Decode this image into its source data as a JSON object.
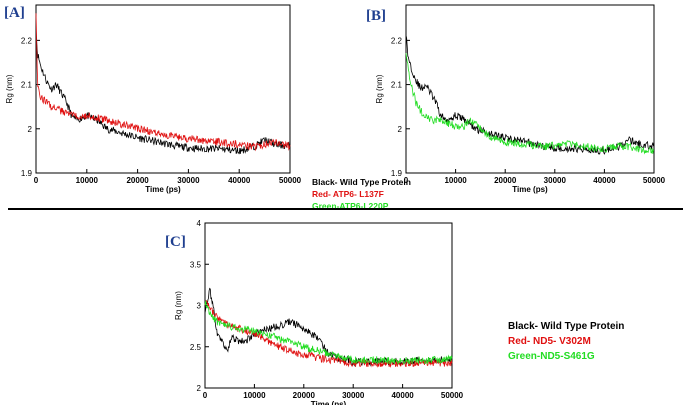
{
  "panels": [
    {
      "label": "[A]"
    },
    {
      "label": "[B]"
    },
    {
      "label": "[C]"
    }
  ],
  "legend_top": {
    "items": [
      {
        "text": "Black- Wild Type Protein",
        "color": "#000000"
      },
      {
        "text": "Red- ATP6- L137F",
        "color": "#e01010"
      },
      {
        "text": "Green-ATP6-L220P",
        "color": "#22dd22"
      }
    ]
  },
  "legend_bottom": {
    "items": [
      {
        "text": "Black- Wild Type Protein",
        "color": "#000000"
      },
      {
        "text": "Red- ND5- V302M",
        "color": "#e01010"
      },
      {
        "text": "Green-ND5-S461G",
        "color": "#22dd22"
      }
    ]
  },
  "chart_data": [
    {
      "type": "line",
      "panel": "[A]",
      "xlabel": "Time (ps)",
      "ylabel": "Rg (nm)",
      "xlim": [
        0,
        50000
      ],
      "ylim": [
        1.9,
        2.28
      ],
      "xticks": [
        "0",
        "10000",
        "20000",
        "30000",
        "40000",
        "50000"
      ],
      "yticks": [
        "1.9",
        "2",
        "2.1",
        "2.2"
      ],
      "series": [
        {
          "color": "#000000",
          "x": [
            0,
            300,
            1000,
            2000,
            3000,
            4000,
            5000,
            6000,
            7000,
            8000,
            10000,
            12000,
            14000,
            17000,
            20000,
            24000,
            28000,
            32000,
            36000,
            40000,
            43000,
            45000,
            47000,
            50000
          ],
          "y": [
            2.22,
            2.17,
            2.14,
            2.11,
            2.09,
            2.1,
            2.08,
            2.06,
            2.03,
            2.02,
            2.03,
            2.02,
            2.0,
            1.99,
            1.98,
            1.97,
            1.96,
            1.955,
            1.955,
            1.95,
            1.96,
            1.975,
            1.965,
            1.96
          ]
        },
        {
          "color": "#e01010",
          "x": [
            0,
            300,
            1000,
            2000,
            3000,
            4000,
            5000,
            6000,
            8000,
            10000,
            12000,
            14000,
            17000,
            20000,
            24000,
            28000,
            32000,
            36000,
            40000,
            43000,
            45000,
            47000,
            50000
          ],
          "y": [
            2.27,
            2.1,
            2.07,
            2.06,
            2.05,
            2.045,
            2.04,
            2.035,
            2.03,
            2.03,
            2.025,
            2.02,
            2.01,
            2.0,
            1.99,
            1.98,
            1.975,
            1.97,
            1.965,
            1.96,
            1.965,
            1.97,
            1.96
          ]
        }
      ]
    },
    {
      "type": "line",
      "panel": "[B]",
      "xlabel": "Time (ps)",
      "ylabel": "Rg (nm)",
      "xlim": [
        0,
        50000
      ],
      "ylim": [
        1.9,
        2.28
      ],
      "xticks": [
        "0",
        "10000",
        "20000",
        "30000",
        "40000",
        "50000"
      ],
      "yticks": [
        "1.9",
        "2",
        "2.1",
        "2.2"
      ],
      "series": [
        {
          "color": "#000000",
          "x": [
            0,
            300,
            1000,
            2000,
            3000,
            4000,
            5000,
            6000,
            7000,
            8000,
            10000,
            12000,
            14000,
            17000,
            20000,
            24000,
            28000,
            32000,
            36000,
            40000,
            43000,
            45000,
            47000,
            50000
          ],
          "y": [
            2.22,
            2.17,
            2.14,
            2.11,
            2.09,
            2.1,
            2.08,
            2.06,
            2.03,
            2.02,
            2.03,
            2.02,
            2.0,
            1.99,
            1.98,
            1.97,
            1.96,
            1.955,
            1.955,
            1.95,
            1.96,
            1.975,
            1.965,
            1.96
          ]
        },
        {
          "color": "#22dd22",
          "x": [
            0,
            300,
            1000,
            2000,
            3000,
            5000,
            7000,
            9000,
            11000,
            13000,
            15000,
            17000,
            20000,
            24000,
            28000,
            32000,
            36000,
            40000,
            43000,
            45000,
            47000,
            50000
          ],
          "y": [
            2.18,
            2.15,
            2.1,
            2.06,
            2.04,
            2.02,
            2.02,
            2.01,
            2.0,
            2.02,
            2.0,
            1.98,
            1.97,
            1.965,
            1.96,
            1.965,
            1.96,
            1.955,
            1.96,
            1.96,
            1.955,
            1.95
          ]
        }
      ]
    },
    {
      "type": "line",
      "panel": "[C]",
      "xlabel": "Time (ps)",
      "ylabel": "Rg (nm)",
      "xlim": [
        0,
        50000
      ],
      "ylim": [
        2,
        4
      ],
      "xticks": [
        "0",
        "10000",
        "20000",
        "30000",
        "40000",
        "50000"
      ],
      "yticks": [
        "2",
        "2.5",
        "3",
        "3.5",
        "4"
      ],
      "series": [
        {
          "color": "#000000",
          "x": [
            0,
            1000,
            1500,
            2500,
            3500,
            4500,
            5500,
            7000,
            9000,
            11000,
            13000,
            15000,
            17000,
            19000,
            21000,
            23000,
            25000,
            27000,
            30000,
            35000,
            40000,
            45000,
            50000
          ],
          "y": [
            2.95,
            3.18,
            3.05,
            2.65,
            2.55,
            2.45,
            2.62,
            2.55,
            2.6,
            2.68,
            2.72,
            2.75,
            2.8,
            2.76,
            2.68,
            2.6,
            2.42,
            2.36,
            2.32,
            2.32,
            2.32,
            2.34,
            2.34
          ]
        },
        {
          "color": "#e01010",
          "x": [
            0,
            1500,
            3000,
            5000,
            7000,
            9000,
            11000,
            13000,
            15000,
            17000,
            19000,
            21000,
            23000,
            26000,
            30000,
            35000,
            40000,
            45000,
            50000
          ],
          "y": [
            3.05,
            2.92,
            2.82,
            2.75,
            2.72,
            2.68,
            2.62,
            2.56,
            2.5,
            2.45,
            2.42,
            2.4,
            2.36,
            2.34,
            2.3,
            2.3,
            2.3,
            2.3,
            2.3
          ]
        },
        {
          "color": "#22dd22",
          "x": [
            0,
            1500,
            3000,
            5000,
            7000,
            9000,
            11000,
            13000,
            15000,
            17000,
            19000,
            21000,
            23000,
            26000,
            30000,
            35000,
            40000,
            45000,
            50000
          ],
          "y": [
            3.05,
            2.85,
            2.78,
            2.74,
            2.72,
            2.7,
            2.68,
            2.64,
            2.6,
            2.56,
            2.52,
            2.48,
            2.45,
            2.4,
            2.34,
            2.34,
            2.33,
            2.34,
            2.35
          ]
        }
      ]
    }
  ]
}
